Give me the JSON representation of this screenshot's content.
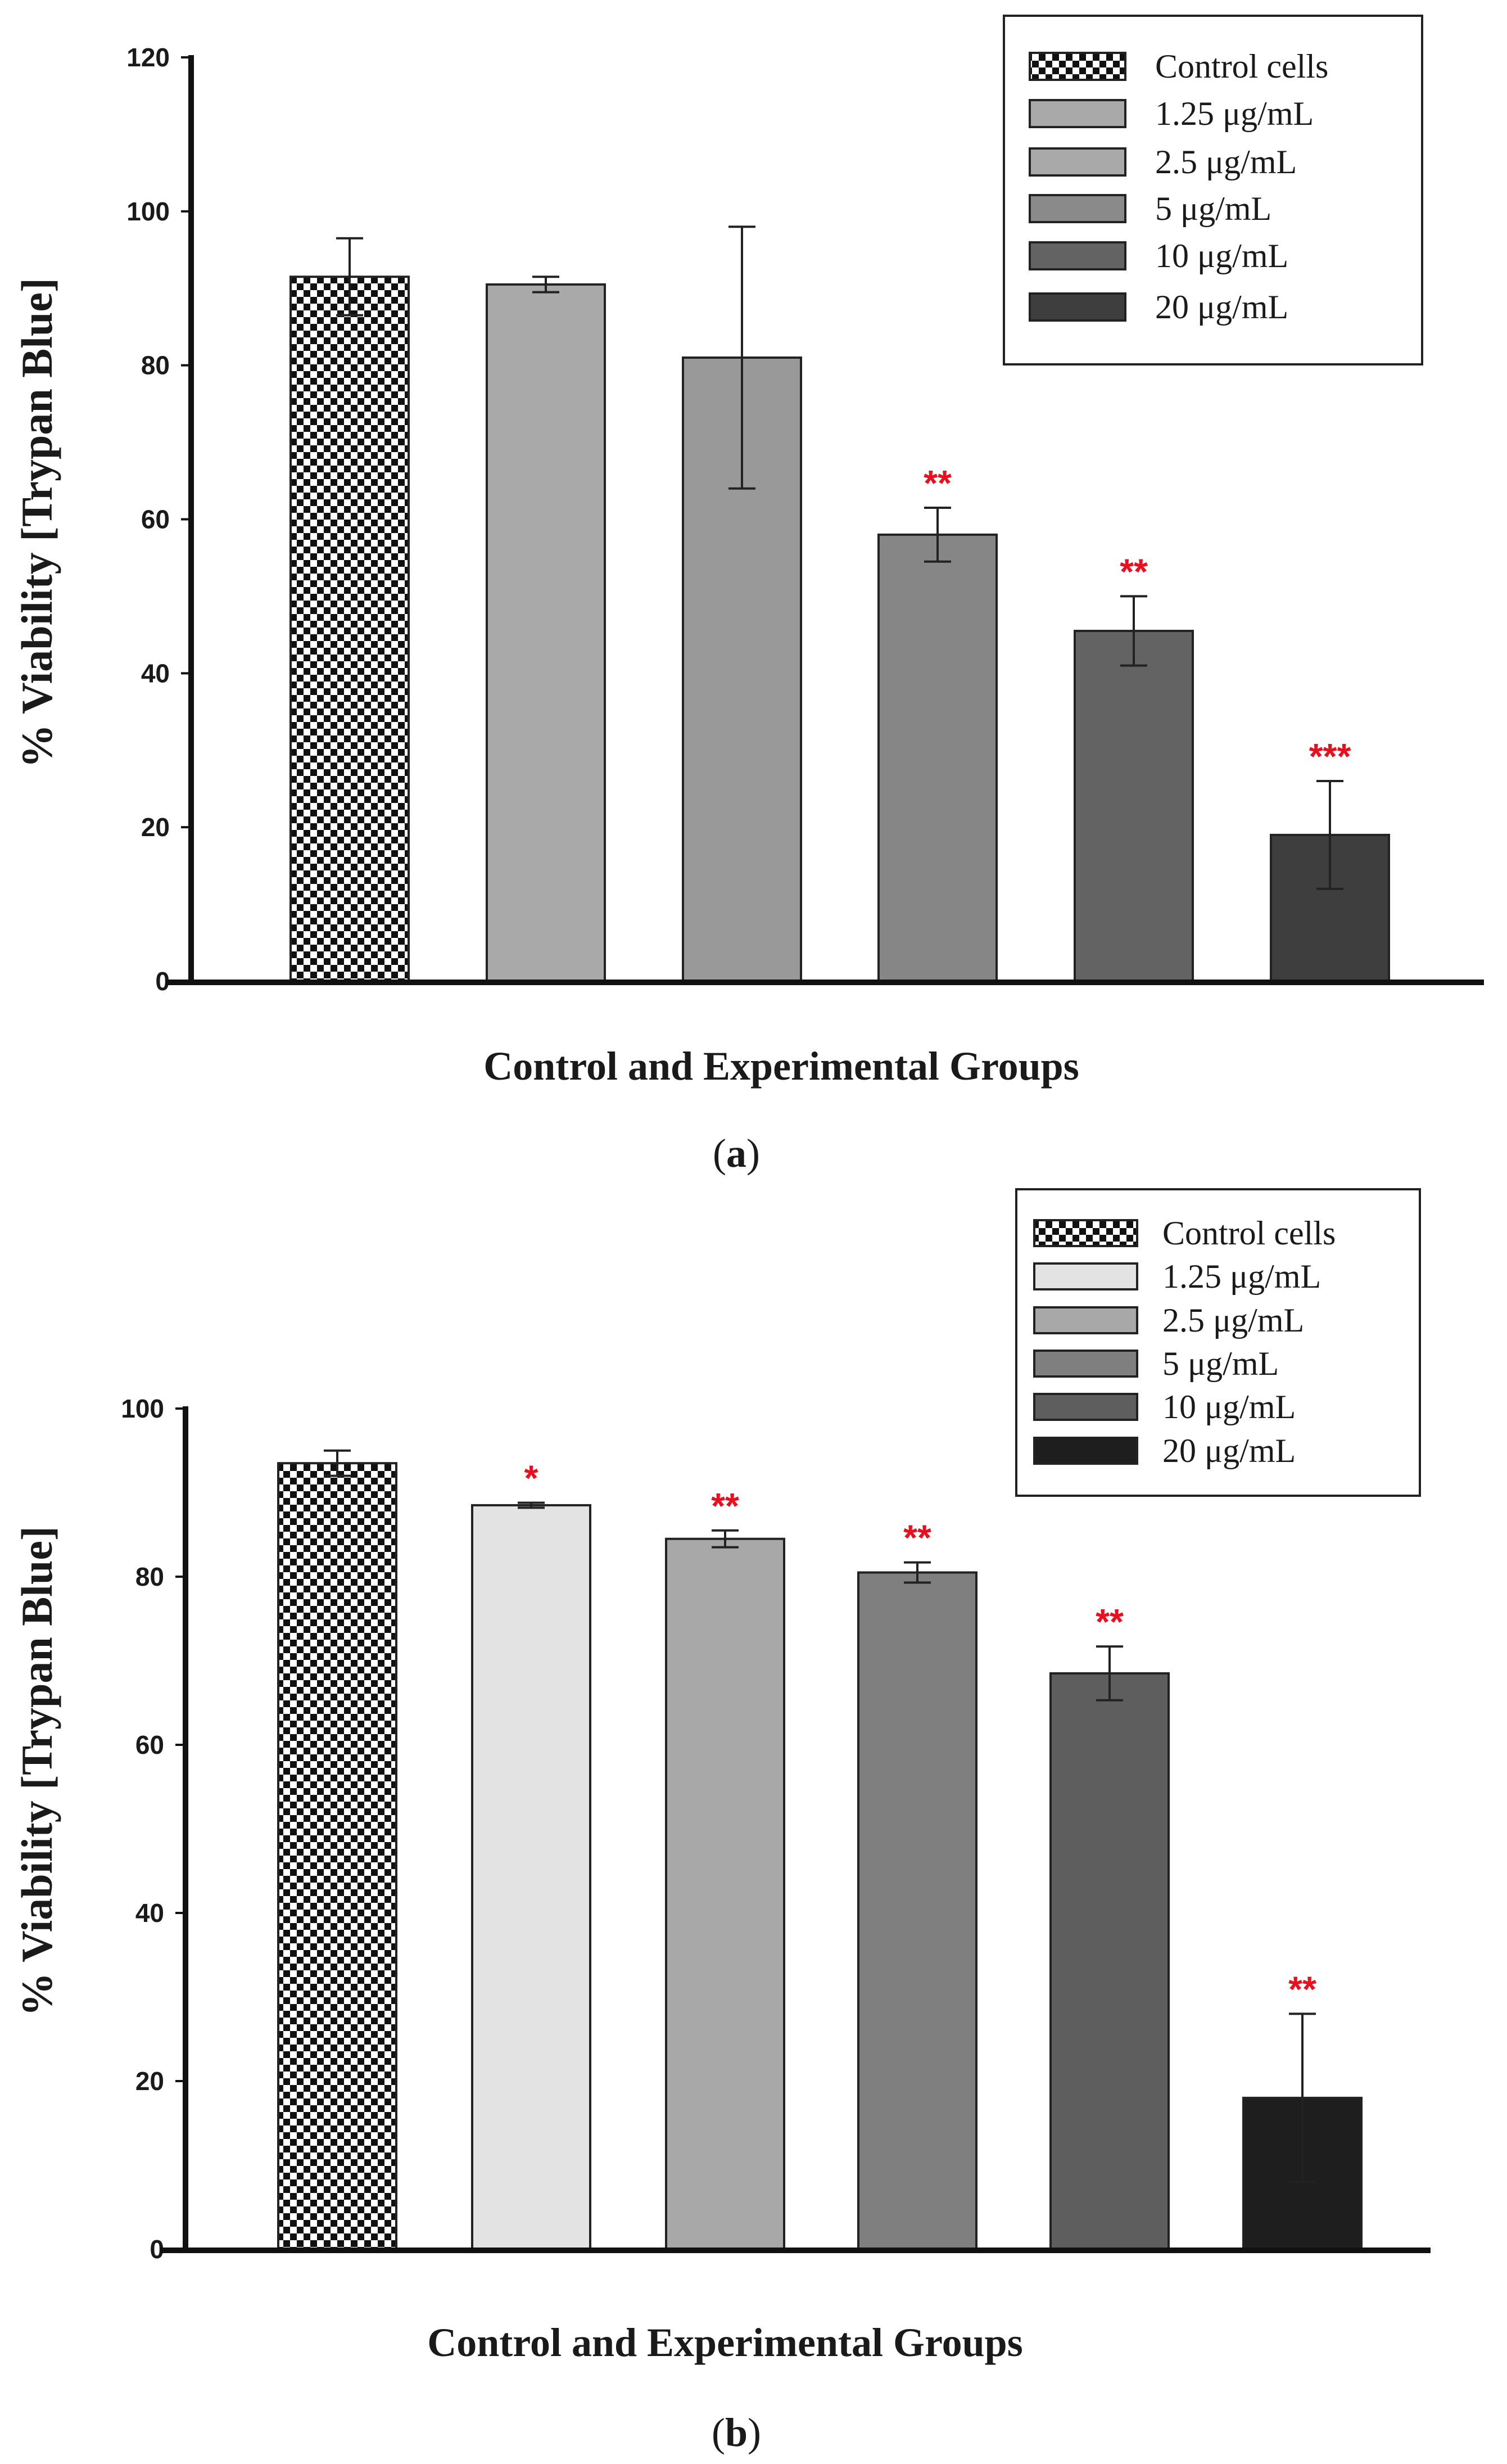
{
  "chart_data": [
    {
      "type": "bar",
      "panel_label": "a",
      "ylabel": "% Viability [Trypan Blue]",
      "xlabel": "Control and Experimental Groups",
      "ylim": [
        0,
        120
      ],
      "yticks": [
        0,
        20,
        40,
        60,
        80,
        100,
        120
      ],
      "categories": [
        "Control cells",
        "1.25 μg/mL",
        "2.5 μg/mL",
        "5 μg/mL",
        "10 μg/mL",
        "20 μg/mL"
      ],
      "values": [
        91.5,
        90.5,
        81,
        58,
        45.5,
        19
      ],
      "errors": [
        5,
        1,
        17,
        3.5,
        4.5,
        7
      ],
      "significance": [
        "",
        "",
        "",
        "**",
        "**",
        "***"
      ],
      "colors": [
        "checker",
        "#a9a9a9",
        "#999999",
        "#868686",
        "#636363",
        "#3e3e3e"
      ],
      "legend": [
        {
          "label": "Control cells",
          "color": "checker"
        },
        {
          "label": "1.25 μg/mL",
          "color": "#a9a9a9"
        },
        {
          "label": "2.5 μg/mL",
          "color": "#a9a9a9"
        },
        {
          "label": "5 μg/mL",
          "color": "#8a8a8a"
        },
        {
          "label": "10 μg/mL",
          "color": "#636363"
        },
        {
          "label": "20 μg/mL",
          "color": "#3e3e3e"
        }
      ],
      "legend_position": "top-right"
    },
    {
      "type": "bar",
      "panel_label": "b",
      "ylabel": "% Viability [Trypan Blue]",
      "xlabel": "Control and Experimental Groups",
      "ylim": [
        0,
        100
      ],
      "yticks": [
        0,
        20,
        40,
        60,
        80,
        100
      ],
      "categories": [
        "Control cells",
        "1.25 μg/mL",
        "2.5 μg/mL",
        "5 μg/mL",
        "10 μg/mL",
        "20 μg/mL"
      ],
      "values": [
        93.5,
        88.5,
        84.5,
        80.5,
        68.5,
        18
      ],
      "errors": [
        1.5,
        0.3,
        1,
        1.2,
        3.2,
        10
      ],
      "significance": [
        "",
        "*",
        "**",
        "**",
        "**",
        "**"
      ],
      "colors": [
        "checker",
        "#e3e3e3",
        "#a8a8a8",
        "#7f7f7f",
        "#5e5e5e",
        "#1e1e1e"
      ],
      "legend": [
        {
          "label": "Control cells",
          "color": "checker"
        },
        {
          "label": "1.25 μg/mL",
          "color": "#e3e3e3"
        },
        {
          "label": "2.5 μg/mL",
          "color": "#a8a8a8"
        },
        {
          "label": "5 μg/mL",
          "color": "#7f7f7f"
        },
        {
          "label": "10 μg/mL",
          "color": "#5e5e5e"
        },
        {
          "label": "20 μg/mL",
          "color": "#1e1e1e"
        }
      ],
      "legend_position": "top-right"
    }
  ]
}
